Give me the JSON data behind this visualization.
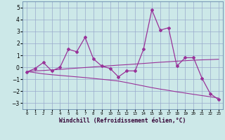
{
  "x": [
    0,
    1,
    2,
    3,
    4,
    5,
    6,
    7,
    8,
    9,
    10,
    11,
    12,
    13,
    14,
    15,
    16,
    17,
    18,
    19,
    20,
    21,
    22,
    23
  ],
  "y_main": [
    -0.4,
    -0.1,
    0.4,
    -0.3,
    0.0,
    1.5,
    1.3,
    2.5,
    0.7,
    0.1,
    -0.1,
    -0.8,
    -0.3,
    -0.3,
    1.5,
    4.8,
    3.1,
    3.3,
    0.1,
    0.8,
    0.8,
    -0.9,
    -2.2,
    -2.7
  ],
  "y_line1": [
    -0.35,
    -0.3,
    -0.27,
    -0.22,
    -0.18,
    -0.12,
    -0.07,
    -0.02,
    0.03,
    0.08,
    0.13,
    0.18,
    0.22,
    0.27,
    0.32,
    0.37,
    0.42,
    0.46,
    0.51,
    0.55,
    0.59,
    0.62,
    0.64,
    0.67
  ],
  "y_line2": [
    -0.35,
    -0.45,
    -0.55,
    -0.62,
    -0.68,
    -0.74,
    -0.8,
    -0.86,
    -0.93,
    -1.0,
    -1.07,
    -1.15,
    -1.28,
    -1.42,
    -1.56,
    -1.7,
    -1.82,
    -1.93,
    -2.05,
    -2.15,
    -2.26,
    -2.36,
    -2.46,
    -2.57
  ],
  "color": "#993399",
  "bg_color": "#cce8e8",
  "grid_color": "#99aacc",
  "ylim": [
    -3.5,
    5.5
  ],
  "yticks": [
    -3,
    -2,
    -1,
    0,
    1,
    2,
    3,
    4,
    5
  ],
  "xlabel": "Windchill (Refroidissement éolien,°C)"
}
